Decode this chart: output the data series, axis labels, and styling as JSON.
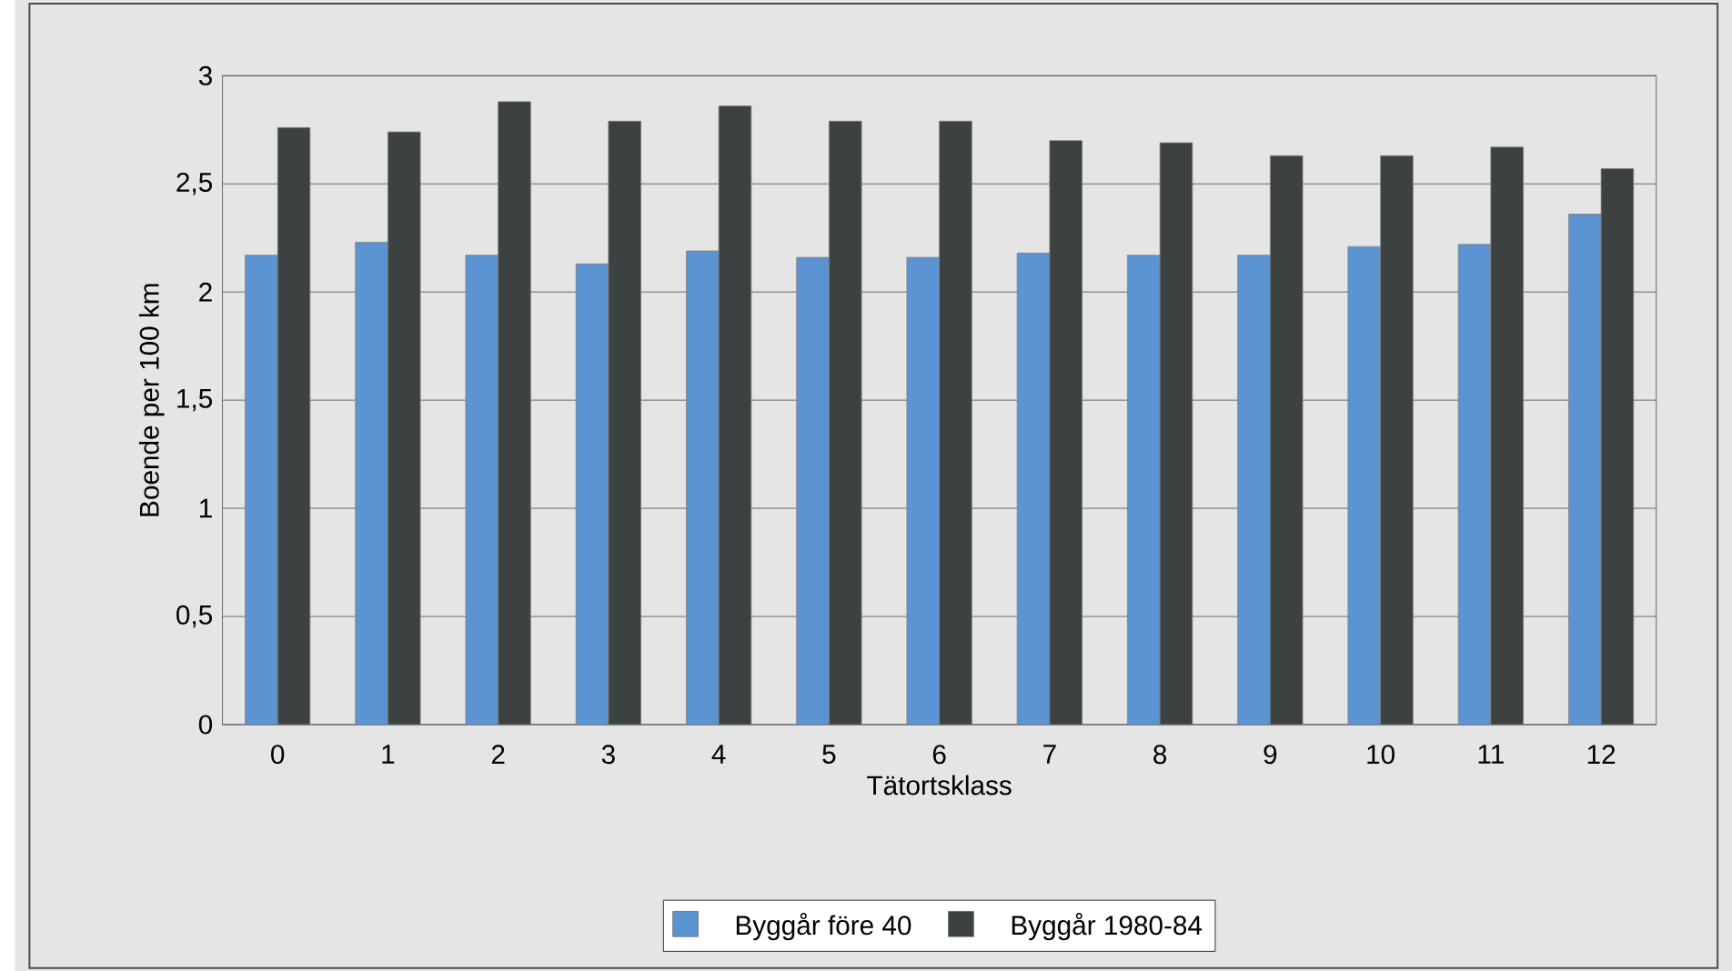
{
  "chart_data": {
    "type": "bar",
    "xlabel": "Tätortsklass",
    "ylabel": "Boende per 100 km",
    "categories": [
      "0",
      "1",
      "2",
      "3",
      "4",
      "5",
      "6",
      "7",
      "8",
      "9",
      "10",
      "11",
      "12"
    ],
    "series": [
      {
        "name": "Byggår före 40",
        "color": "#5b93d3",
        "values": [
          2.17,
          2.23,
          2.17,
          2.13,
          2.19,
          2.16,
          2.16,
          2.18,
          2.17,
          2.17,
          2.21,
          2.22,
          2.36
        ]
      },
      {
        "name": "Byggår 1980-84",
        "color": "#3c4241",
        "values": [
          2.76,
          2.74,
          2.88,
          2.79,
          2.86,
          2.79,
          2.79,
          2.7,
          2.69,
          2.63,
          2.63,
          2.67,
          2.57
        ]
      }
    ],
    "ylim": [
      0,
      3
    ],
    "yticks": [
      0,
      {
        "value": 0.5,
        "label": "0,5"
      },
      1,
      {
        "value": 1.5,
        "label": "1,5"
      },
      2,
      {
        "value": 2.5,
        "label": "2,5"
      },
      3
    ],
    "grid": "y",
    "legend": "bottom"
  }
}
